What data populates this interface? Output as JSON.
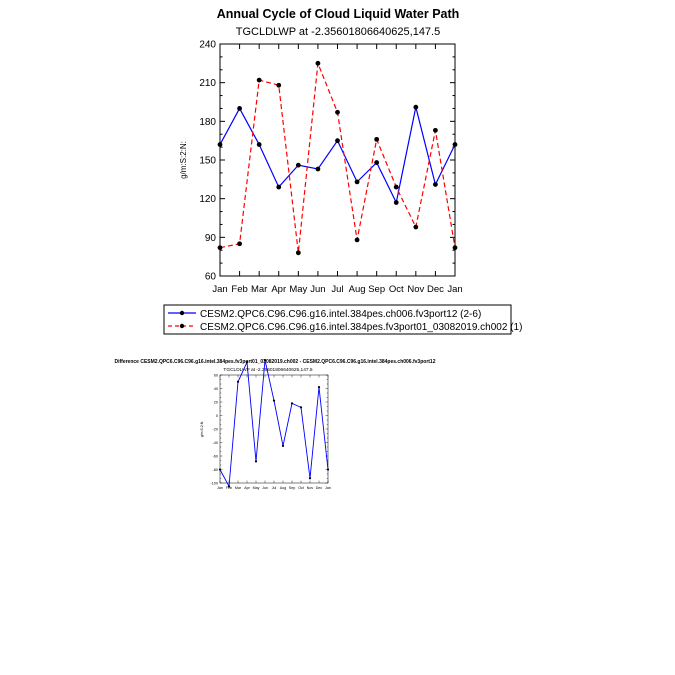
{
  "chart_data": [
    {
      "type": "line",
      "title": "Annual Cycle of Cloud Liquid Water Path",
      "subtitle": "TGCLDLWP at -2.35601806640625,147.5",
      "xlabel": "",
      "ylabel": "g/m:S:2:N:",
      "categories": [
        "Jan",
        "Feb",
        "Mar",
        "Apr",
        "May",
        "Jun",
        "Jul",
        "Aug",
        "Sep",
        "Oct",
        "Nov",
        "Dec",
        "Jan"
      ],
      "ylim": [
        60,
        240
      ],
      "yticks": [
        "60",
        "90",
        "120",
        "150",
        "180",
        "210",
        "240"
      ],
      "series": [
        {
          "name": "CESM2.QPC6.C96.C96.g16.intel.384pes.ch006.fv3port12 (2-6)",
          "color": "#0000ff",
          "dash": "solid",
          "values": [
            162,
            190,
            162,
            129,
            146,
            143,
            165,
            133,
            148,
            117,
            191,
            131,
            162
          ]
        },
        {
          "name": "CESM2.QPC6.C96.C96.g16.intel.384pes.fv3port01_03082019.ch002 (1)",
          "color": "#ff0000",
          "dash": "dashed",
          "values": [
            82,
            85,
            212,
            208,
            78,
            225,
            187,
            88,
            166,
            129,
            98,
            173,
            82
          ]
        }
      ],
      "legend_position": "bottom"
    },
    {
      "type": "line",
      "title": "Difference CESM2.QPC6.C96.C96.g16.intel.384pes.fv3port01_03082019.ch002 - CESM2.QPC6.C96.C96.g16.intel.384pes.ch006.fv3port12",
      "subtitle": "TGCLDLWP at -2.35601806640625,147.5",
      "xlabel": "",
      "ylabel": "g/m:S:2:N:",
      "categories": [
        "Jan",
        "Feb",
        "Mar",
        "Apr",
        "May",
        "Jun",
        "Jul",
        "Aug",
        "Sep",
        "Oct",
        "Nov",
        "Dec",
        "Jan"
      ],
      "ylim": [
        -100,
        60
      ],
      "yticks": [
        "-100",
        "-80",
        "-60",
        "-40",
        "-20",
        "0",
        "20",
        "40",
        "60"
      ],
      "series": [
        {
          "color": "#0000ff",
          "values": [
            -80,
            -105,
            50,
            79,
            -68,
            82,
            22,
            -45,
            18,
            12,
            -93,
            42,
            -80
          ]
        }
      ]
    }
  ]
}
